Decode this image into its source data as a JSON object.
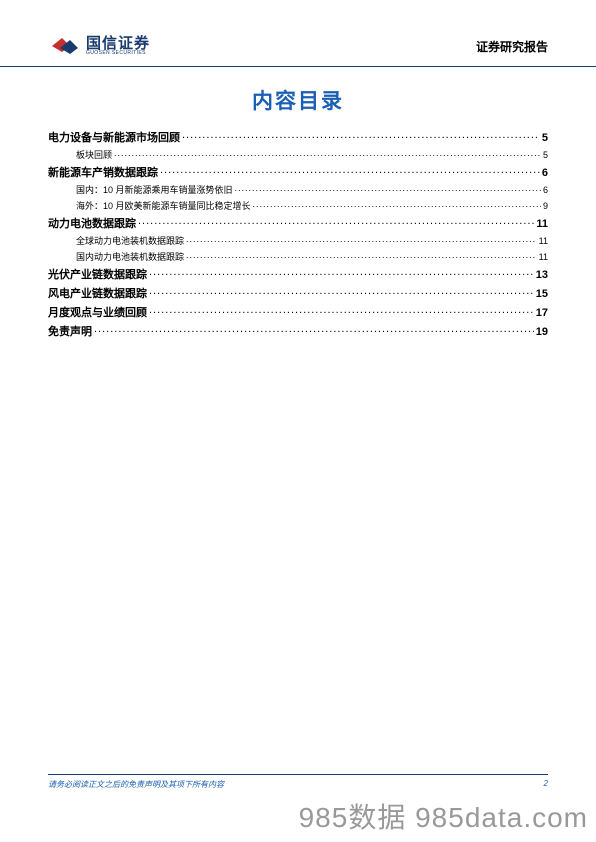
{
  "header": {
    "logo_cn": "国信证券",
    "logo_en": "GUOSEN SECURITIES",
    "report_label": "证券研究报告"
  },
  "toc": {
    "title": "内容目录",
    "items": [
      {
        "level": 1,
        "label": "电力设备与新能源市场回顾",
        "page": "5"
      },
      {
        "level": 2,
        "label": "板块回顾",
        "page": "5"
      },
      {
        "level": 1,
        "label": "新能源车产销数据跟踪",
        "page": "6"
      },
      {
        "level": 2,
        "label": "国内：10 月新能源乘用车销量涨势依旧",
        "page": "6"
      },
      {
        "level": 2,
        "label": "海外：10 月欧美新能源车销量同比稳定增长",
        "page": "9"
      },
      {
        "level": 1,
        "label": "动力电池数据跟踪",
        "page": "11"
      },
      {
        "level": 2,
        "label": "全球动力电池装机数据跟踪",
        "page": "11"
      },
      {
        "level": 2,
        "label": "国内动力电池装机数据跟踪",
        "page": "11"
      },
      {
        "level": 1,
        "label": "光伏产业链数据跟踪",
        "page": "13"
      },
      {
        "level": 1,
        "label": "风电产业链数据跟踪",
        "page": "15"
      },
      {
        "level": 1,
        "label": "月度观点与业绩回顾",
        "page": "17"
      },
      {
        "level": 1,
        "label": "免责声明",
        "page": "19"
      }
    ]
  },
  "footer": {
    "disclaimer": "请务必阅读正文之后的免责声明及其项下所有内容",
    "page_number": "2"
  },
  "watermark": "985数据 985data.com",
  "colors": {
    "brand_blue": "#1a5fb4",
    "dark_blue": "#1a3b6e",
    "logo_red": "#c72e2e"
  }
}
